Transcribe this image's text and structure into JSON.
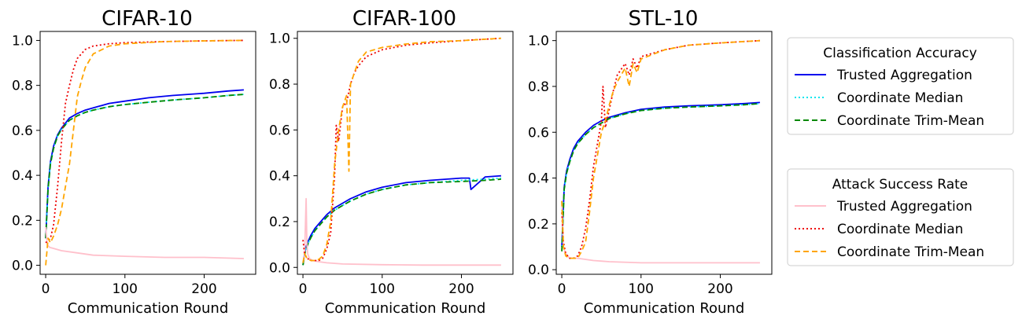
{
  "chart_data": [
    {
      "type": "line",
      "title": "CIFAR-10",
      "xlabel": "Communication Round",
      "ylabel": "",
      "xlim": [
        -7,
        265
      ],
      "ylim": [
        -0.04,
        1.04
      ],
      "xticks": [
        0,
        100,
        200
      ],
      "yticks": [
        0.0,
        0.2,
        0.4,
        0.6,
        0.8,
        1.0
      ],
      "series": [
        {
          "name": "Trusted Aggregation",
          "group": "Classification Accuracy",
          "color": "#0000ee",
          "dash": "solid",
          "x": [
            0,
            3,
            6,
            10,
            15,
            20,
            30,
            40,
            50,
            60,
            80,
            100,
            130,
            160,
            200,
            230,
            250
          ],
          "y": [
            0.12,
            0.35,
            0.46,
            0.53,
            0.58,
            0.61,
            0.655,
            0.675,
            0.69,
            0.7,
            0.72,
            0.73,
            0.745,
            0.755,
            0.765,
            0.775,
            0.78
          ]
        },
        {
          "name": "Coordinate Median",
          "group": "Classification Accuracy",
          "color": "#00e5ee",
          "dash": "dotted",
          "x": [
            0,
            3,
            6,
            10,
            15,
            20,
            30,
            40,
            50,
            60,
            80,
            100,
            130,
            160,
            200,
            230,
            250
          ],
          "y": [
            0.12,
            0.34,
            0.45,
            0.52,
            0.575,
            0.605,
            0.645,
            0.665,
            0.68,
            0.69,
            0.705,
            0.715,
            0.725,
            0.735,
            0.745,
            0.755,
            0.76
          ]
        },
        {
          "name": "Coordinate Trim-Mean",
          "group": "Classification Accuracy",
          "color": "#008800",
          "dash": "dashed",
          "x": [
            0,
            3,
            6,
            10,
            15,
            20,
            30,
            40,
            50,
            60,
            80,
            100,
            130,
            160,
            200,
            230,
            250
          ],
          "y": [
            0.12,
            0.34,
            0.45,
            0.52,
            0.575,
            0.605,
            0.645,
            0.665,
            0.68,
            0.69,
            0.705,
            0.715,
            0.725,
            0.735,
            0.745,
            0.755,
            0.76
          ]
        },
        {
          "name": "Trusted Aggregation",
          "group": "Attack Success Rate",
          "color": "#ffc0cb",
          "dash": "solid",
          "x": [
            0,
            2,
            5,
            10,
            20,
            40,
            60,
            100,
            150,
            200,
            250
          ],
          "y": [
            0.17,
            0.09,
            0.08,
            0.075,
            0.065,
            0.055,
            0.045,
            0.04,
            0.035,
            0.035,
            0.03
          ]
        },
        {
          "name": "Coordinate Median",
          "group": "Attack Success Rate",
          "color": "#ee0000",
          "dash": "dotted",
          "x": [
            0,
            3,
            6,
            10,
            15,
            20,
            25,
            30,
            35,
            40,
            50,
            60,
            80,
            100,
            150,
            200,
            250
          ],
          "y": [
            0.1,
            0.11,
            0.12,
            0.18,
            0.35,
            0.55,
            0.72,
            0.8,
            0.87,
            0.92,
            0.96,
            0.975,
            0.985,
            0.99,
            0.995,
            0.998,
            1.0
          ]
        },
        {
          "name": "Coordinate Trim-Mean",
          "group": "Attack Success Rate",
          "color": "#ffa500",
          "dash": "dashed",
          "x": [
            0,
            3,
            6,
            10,
            15,
            20,
            25,
            30,
            35,
            40,
            45,
            50,
            60,
            80,
            100,
            150,
            200,
            250
          ],
          "y": [
            0.0,
            0.12,
            0.1,
            0.13,
            0.18,
            0.25,
            0.35,
            0.45,
            0.6,
            0.75,
            0.82,
            0.88,
            0.94,
            0.975,
            0.985,
            0.995,
            0.998,
            1.0
          ]
        }
      ]
    },
    {
      "type": "line",
      "title": "CIFAR-100",
      "xlabel": "Communication Round",
      "ylabel": "",
      "xlim": [
        -7,
        265
      ],
      "ylim": [
        -0.03,
        1.03
      ],
      "xticks": [
        0,
        100,
        200
      ],
      "yticks": [
        0.0,
        0.2,
        0.4,
        0.6,
        0.8,
        1.0
      ],
      "series": [
        {
          "name": "Trusted Aggregation",
          "group": "Classification Accuracy",
          "color": "#0000ee",
          "dash": "solid",
          "x": [
            0,
            3,
            6,
            10,
            15,
            20,
            30,
            40,
            50,
            60,
            80,
            100,
            130,
            160,
            200,
            210,
            212,
            230,
            250
          ],
          "y": [
            0.01,
            0.08,
            0.11,
            0.14,
            0.17,
            0.19,
            0.23,
            0.26,
            0.28,
            0.3,
            0.33,
            0.35,
            0.37,
            0.38,
            0.39,
            0.39,
            0.34,
            0.395,
            0.4
          ]
        },
        {
          "name": "Coordinate Median",
          "group": "Classification Accuracy",
          "color": "#00e5ee",
          "dash": "dotted",
          "x": [
            0,
            3,
            6,
            10,
            15,
            20,
            30,
            40,
            50,
            60,
            80,
            100,
            130,
            160,
            200,
            230,
            250
          ],
          "y": [
            0.01,
            0.07,
            0.1,
            0.13,
            0.16,
            0.18,
            0.22,
            0.25,
            0.27,
            0.29,
            0.32,
            0.34,
            0.36,
            0.37,
            0.38,
            0.385,
            0.39
          ]
        },
        {
          "name": "Coordinate Trim-Mean",
          "group": "Classification Accuracy",
          "color": "#008800",
          "dash": "dashed",
          "x": [
            0,
            3,
            6,
            10,
            15,
            20,
            30,
            40,
            50,
            60,
            80,
            100,
            130,
            160,
            200,
            230,
            250
          ],
          "y": [
            0.01,
            0.07,
            0.1,
            0.13,
            0.16,
            0.18,
            0.22,
            0.25,
            0.27,
            0.29,
            0.32,
            0.34,
            0.36,
            0.37,
            0.375,
            0.38,
            0.385
          ]
        },
        {
          "name": "Trusted Aggregation",
          "group": "Attack Success Rate",
          "color": "#ffc0cb",
          "dash": "solid",
          "x": [
            0,
            2,
            4,
            5,
            6,
            8,
            12,
            20,
            30,
            50,
            100,
            150,
            200,
            250
          ],
          "y": [
            0.02,
            0.05,
            0.3,
            0.1,
            0.06,
            0.04,
            0.03,
            0.025,
            0.02,
            0.015,
            0.012,
            0.01,
            0.01,
            0.01
          ]
        },
        {
          "name": "Coordinate Median",
          "group": "Attack Success Rate",
          "color": "#ee0000",
          "dash": "dotted",
          "x": [
            0,
            2,
            5,
            10,
            15,
            20,
            25,
            30,
            35,
            40,
            42,
            45,
            50,
            55,
            60,
            65,
            70,
            80,
            100,
            130,
            160,
            200,
            250
          ],
          "y": [
            0.12,
            0.06,
            0.04,
            0.03,
            0.03,
            0.03,
            0.04,
            0.08,
            0.15,
            0.4,
            0.62,
            0.55,
            0.7,
            0.72,
            0.8,
            0.85,
            0.88,
            0.92,
            0.95,
            0.97,
            0.98,
            0.99,
            1.0
          ]
        },
        {
          "name": "Coordinate Trim-Mean",
          "group": "Attack Success Rate",
          "color": "#ffa500",
          "dash": "dashed",
          "x": [
            0,
            2,
            5,
            10,
            15,
            20,
            25,
            30,
            35,
            40,
            45,
            50,
            55,
            58,
            60,
            65,
            70,
            80,
            100,
            130,
            160,
            200,
            250
          ],
          "y": [
            0.02,
            0.06,
            0.04,
            0.03,
            0.03,
            0.035,
            0.05,
            0.1,
            0.2,
            0.45,
            0.6,
            0.7,
            0.75,
            0.42,
            0.8,
            0.85,
            0.9,
            0.94,
            0.96,
            0.975,
            0.985,
            0.99,
            1.0
          ]
        }
      ]
    },
    {
      "type": "line",
      "title": "STL-10",
      "xlabel": "Communication Round",
      "ylabel": "",
      "xlim": [
        -7,
        265
      ],
      "ylim": [
        -0.02,
        1.04
      ],
      "xticks": [
        0,
        100,
        200
      ],
      "yticks": [
        0.0,
        0.2,
        0.4,
        0.6,
        0.8,
        1.0
      ],
      "series": [
        {
          "name": "Trusted Aggregation",
          "group": "Classification Accuracy",
          "color": "#0000ee",
          "dash": "solid",
          "x": [
            0,
            3,
            6,
            10,
            15,
            20,
            30,
            40,
            50,
            60,
            80,
            100,
            130,
            160,
            200,
            230,
            250
          ],
          "y": [
            0.1,
            0.36,
            0.43,
            0.48,
            0.53,
            0.56,
            0.6,
            0.63,
            0.65,
            0.665,
            0.685,
            0.7,
            0.71,
            0.715,
            0.72,
            0.725,
            0.73
          ]
        },
        {
          "name": "Coordinate Median",
          "group": "Classification Accuracy",
          "color": "#00e5ee",
          "dash": "dotted",
          "x": [
            0,
            3,
            6,
            10,
            15,
            20,
            30,
            40,
            50,
            60,
            80,
            100,
            130,
            160,
            200,
            230,
            250
          ],
          "y": [
            0.1,
            0.35,
            0.42,
            0.47,
            0.52,
            0.55,
            0.59,
            0.62,
            0.64,
            0.66,
            0.68,
            0.695,
            0.705,
            0.71,
            0.715,
            0.72,
            0.725
          ]
        },
        {
          "name": "Coordinate Trim-Mean",
          "group": "Classification Accuracy",
          "color": "#008800",
          "dash": "dashed",
          "x": [
            0,
            3,
            6,
            10,
            15,
            20,
            30,
            40,
            50,
            60,
            80,
            100,
            130,
            160,
            200,
            230,
            250
          ],
          "y": [
            0.08,
            0.35,
            0.42,
            0.47,
            0.52,
            0.55,
            0.59,
            0.62,
            0.64,
            0.66,
            0.68,
            0.695,
            0.705,
            0.71,
            0.715,
            0.72,
            0.725
          ]
        },
        {
          "name": "Trusted Aggregation",
          "group": "Attack Success Rate",
          "color": "#ffc0cb",
          "dash": "solid",
          "x": [
            0,
            2,
            5,
            10,
            20,
            40,
            60,
            100,
            150,
            200,
            250
          ],
          "y": [
            0.3,
            0.1,
            0.07,
            0.05,
            0.05,
            0.04,
            0.035,
            0.03,
            0.03,
            0.03,
            0.03
          ]
        },
        {
          "name": "Coordinate Median",
          "group": "Attack Success Rate",
          "color": "#ee0000",
          "dash": "dotted",
          "x": [
            0,
            2,
            5,
            10,
            15,
            20,
            25,
            30,
            35,
            40,
            45,
            50,
            52,
            55,
            60,
            65,
            70,
            80,
            85,
            90,
            95,
            100,
            130,
            160,
            200,
            250
          ],
          "y": [
            0.25,
            0.12,
            0.07,
            0.05,
            0.05,
            0.06,
            0.1,
            0.18,
            0.3,
            0.45,
            0.55,
            0.65,
            0.8,
            0.62,
            0.7,
            0.78,
            0.85,
            0.9,
            0.85,
            0.92,
            0.88,
            0.93,
            0.96,
            0.98,
            0.99,
            1.0
          ]
        },
        {
          "name": "Coordinate Trim-Mean",
          "group": "Attack Success Rate",
          "color": "#ffa500",
          "dash": "dashed",
          "x": [
            0,
            2,
            5,
            10,
            15,
            20,
            25,
            30,
            35,
            40,
            45,
            50,
            55,
            60,
            65,
            70,
            80,
            85,
            90,
            95,
            100,
            130,
            160,
            200,
            250
          ],
          "y": [
            0.3,
            0.1,
            0.06,
            0.05,
            0.05,
            0.05,
            0.08,
            0.12,
            0.25,
            0.4,
            0.5,
            0.6,
            0.65,
            0.72,
            0.78,
            0.82,
            0.88,
            0.8,
            0.9,
            0.86,
            0.92,
            0.96,
            0.98,
            0.99,
            1.0
          ]
        }
      ]
    }
  ],
  "legends": [
    {
      "title": "Classification Accuracy",
      "entries": [
        {
          "label": "Trusted Aggregation",
          "color": "#0000ee",
          "dash": "solid"
        },
        {
          "label": "Coordinate Median",
          "color": "#00e5ee",
          "dash": "dotted"
        },
        {
          "label": "Coordinate Trim-Mean",
          "color": "#008800",
          "dash": "dashed"
        }
      ]
    },
    {
      "title": "Attack Success Rate",
      "entries": [
        {
          "label": "Trusted Aggregation",
          "color": "#ffc0cb",
          "dash": "solid"
        },
        {
          "label": "Coordinate Median",
          "color": "#ee0000",
          "dash": "dotted"
        },
        {
          "label": "Coordinate Trim-Mean",
          "color": "#ffa500",
          "dash": "dashed"
        }
      ]
    }
  ]
}
